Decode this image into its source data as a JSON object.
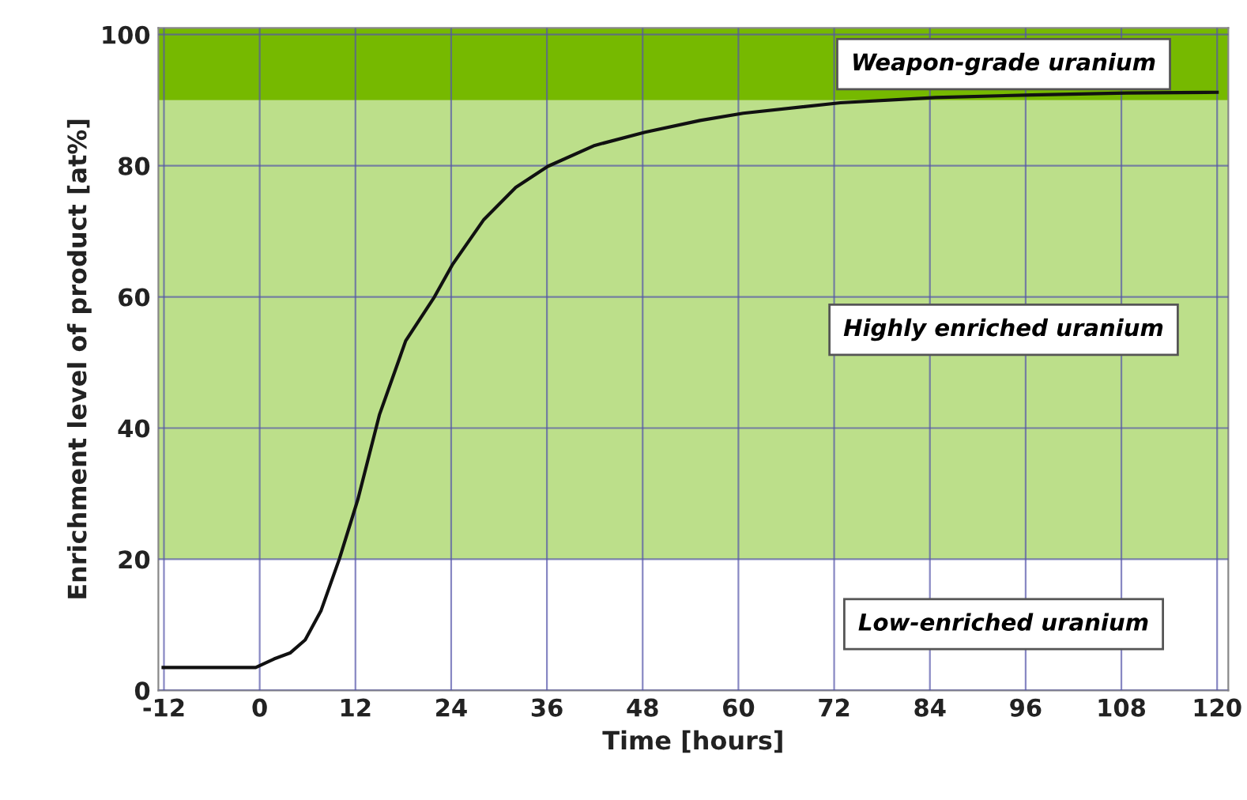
{
  "chart_data": {
    "type": "line",
    "xlabel": "Time [hours]",
    "ylabel": "Enrichment level of product [at%]",
    "series": [
      {
        "color": "#111111",
        "x": [
          -12.1,
          -0.5,
          1.8,
          3.8,
          5.7,
          7.7,
          10,
          12.3,
          15,
          18.3,
          21.9,
          24.2,
          28.1,
          32.1,
          36.1,
          42,
          48.3,
          55.2,
          60.6,
          72.8,
          84.7,
          96.8,
          108.7,
          120
        ],
        "values": [
          3.5,
          3.5,
          4.8,
          5.7,
          7.7,
          12.2,
          20.1,
          29.1,
          42,
          53.3,
          60,
          65,
          71.8,
          76.7,
          79.9,
          83.1,
          85.1,
          86.9,
          88,
          89.6,
          90.4,
          90.8,
          91.1,
          91.2
        ]
      }
    ],
    "xlim": [
      -12.7,
      121.4
    ],
    "ylim": [
      0,
      101
    ],
    "xticks": [
      -12,
      0,
      12,
      24,
      36,
      48,
      60,
      72,
      84,
      96,
      108,
      120
    ],
    "yticks": [
      0,
      20,
      40,
      60,
      80,
      100
    ],
    "annotations": [
      "Low-enriched uranium"
    ],
    "bands": [
      {
        "axis": "y",
        "from": 20,
        "to": 90,
        "label": "Highly enriched uranium",
        "color": "#bcdf8a"
      },
      {
        "axis": "y",
        "from": 90,
        "to": 101,
        "label": "Weapon-grade uranium",
        "color": "#76b900"
      }
    ],
    "grid": true,
    "marker": "none",
    "line_style": "solid",
    "legend": false
  }
}
